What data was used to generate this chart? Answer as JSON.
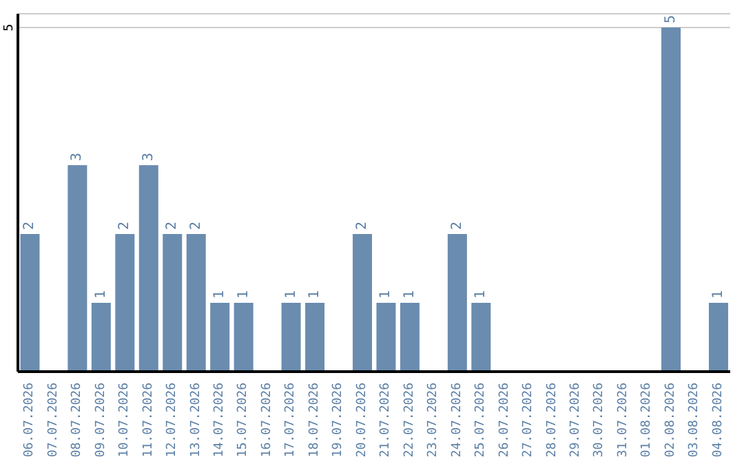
{
  "chart_data": {
    "type": "bar",
    "categories": [
      "06.07.2026",
      "07.07.2026",
      "08.07.2026",
      "09.07.2026",
      "10.07.2026",
      "11.07.2026",
      "12.07.2026",
      "13.07.2026",
      "14.07.2026",
      "15.07.2026",
      "16.07.2026",
      "17.07.2026",
      "18.07.2026",
      "19.07.2026",
      "20.07.2026",
      "21.07.2026",
      "22.07.2026",
      "23.07.2026",
      "24.07.2026",
      "25.07.2026",
      "26.07.2026",
      "27.07.2026",
      "28.07.2026",
      "29.07.2026",
      "30.07.2026",
      "31.07.2026",
      "01.08.2026",
      "02.08.2026",
      "03.08.2026",
      "04.08.2026"
    ],
    "values": [
      2,
      0,
      3,
      1,
      2,
      3,
      2,
      2,
      1,
      1,
      0,
      1,
      1,
      0,
      2,
      1,
      1,
      0,
      2,
      1,
      0,
      0,
      0,
      0,
      0,
      0,
      0,
      5,
      0,
      1
    ],
    "value_labels": [
      "2",
      null,
      "3",
      "1",
      "2",
      "3",
      "2",
      "2",
      "1",
      "1",
      null,
      "1",
      "1",
      null,
      "2",
      "1",
      "1",
      null,
      "2",
      "1",
      null,
      null,
      null,
      null,
      null,
      null,
      null,
      "5",
      null,
      "1"
    ],
    "color": "#6a8caf",
    "ylim": [
      0,
      5.2
    ],
    "yticks": [
      5
    ],
    "grid": "y"
  }
}
